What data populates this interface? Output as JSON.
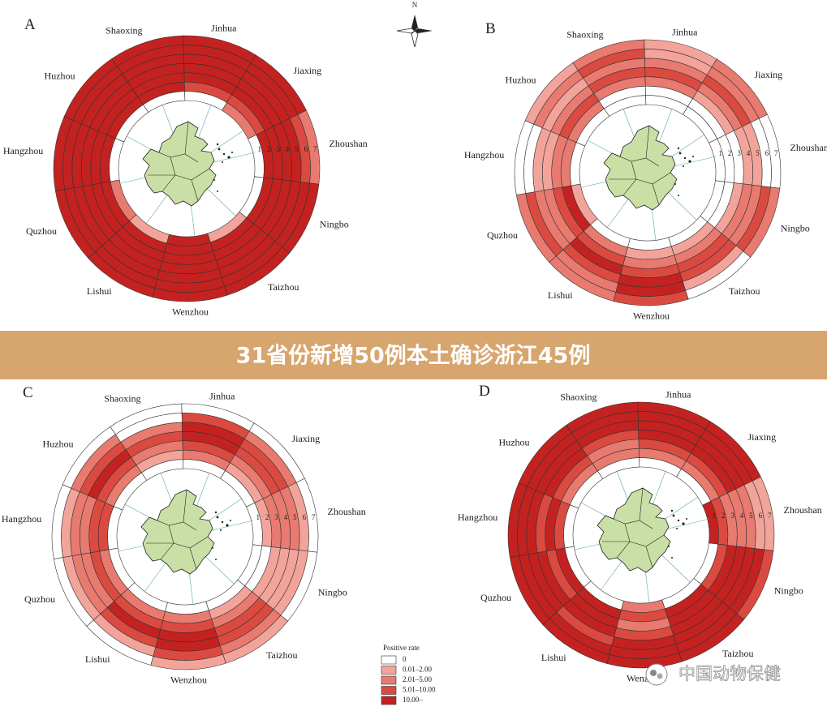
{
  "banner": "31省份新增50例本土确诊浙江45例",
  "compass": "N",
  "watermark": "中国动物保健",
  "ring_numbers": [
    "1",
    "2",
    "3",
    "4",
    "5",
    "6",
    "7"
  ],
  "legend": {
    "title": "Positive rate",
    "classes": [
      {
        "label": "0",
        "color": "#ffffff"
      },
      {
        "label": "0.01–2.00",
        "color": "#f2a49b"
      },
      {
        "label": "2.01–5.00",
        "color": "#e87a70"
      },
      {
        "label": "5.01–10.00",
        "color": "#db4a40"
      },
      {
        "label": "10.00–",
        "color": "#c42220"
      }
    ]
  },
  "panels": [
    {
      "label": "A",
      "sectors": [
        {
          "city": "Zhoushan",
          "levels": [
            0,
            4,
            4,
            4,
            4,
            3,
            2
          ]
        },
        {
          "city": "Ningbo",
          "levels": [
            0,
            4,
            4,
            4,
            4,
            4,
            4
          ]
        },
        {
          "city": "Taizhou",
          "levels": [
            1,
            4,
            4,
            4,
            4,
            4,
            4
          ]
        },
        {
          "city": "Wenzhou",
          "levels": [
            4,
            4,
            4,
            4,
            4,
            4,
            4
          ]
        },
        {
          "city": "Lishui",
          "levels": [
            1,
            4,
            4,
            4,
            4,
            4,
            4
          ]
        },
        {
          "city": "Quzhou",
          "levels": [
            2,
            4,
            4,
            4,
            4,
            4,
            4
          ]
        },
        {
          "city": "Hangzhou",
          "levels": [
            0,
            4,
            4,
            4,
            4,
            4,
            4
          ]
        },
        {
          "city": "Huzhou",
          "levels": [
            0,
            4,
            4,
            4,
            4,
            4,
            4
          ]
        },
        {
          "city": "Shaoxing",
          "levels": [
            0,
            4,
            4,
            4,
            4,
            4,
            4
          ]
        },
        {
          "city": "Jinhua",
          "levels": [
            0,
            3,
            4,
            4,
            4,
            4,
            4
          ]
        },
        {
          "city": "Jiaxing",
          "levels": [
            2,
            3,
            4,
            4,
            4,
            4,
            4
          ]
        }
      ]
    },
    {
      "label": "B",
      "sectors": [
        {
          "city": "Zhoushan",
          "levels": [
            0,
            0,
            0,
            1,
            1,
            0,
            0
          ]
        },
        {
          "city": "Ningbo",
          "levels": [
            0,
            0,
            1,
            2,
            2,
            3,
            2
          ]
        },
        {
          "city": "Taizhou",
          "levels": [
            0,
            1,
            2,
            3,
            3,
            1,
            0
          ]
        },
        {
          "city": "Wenzhou",
          "levels": [
            0,
            1,
            2,
            3,
            4,
            4,
            3
          ]
        },
        {
          "city": "Lishui",
          "levels": [
            0,
            2,
            3,
            4,
            3,
            2,
            2
          ]
        },
        {
          "city": "Quzhou",
          "levels": [
            1,
            4,
            3,
            2,
            2,
            3,
            2
          ]
        },
        {
          "city": "Hangzhou",
          "levels": [
            0,
            2,
            2,
            1,
            1,
            0,
            0
          ]
        },
        {
          "city": "Huzhou",
          "levels": [
            0,
            2,
            3,
            2,
            1,
            2,
            1
          ]
        },
        {
          "city": "Shaoxing",
          "levels": [
            0,
            0,
            2,
            3,
            2,
            3,
            2
          ]
        },
        {
          "city": "Jinhua",
          "levels": [
            0,
            0,
            2,
            3,
            2,
            1,
            1
          ]
        },
        {
          "city": "Jiaxing",
          "levels": [
            0,
            0,
            1,
            2,
            3,
            2,
            2
          ]
        }
      ]
    },
    {
      "label": "C",
      "sectors": [
        {
          "city": "Zhoushan",
          "levels": [
            0,
            1,
            2,
            2,
            2,
            1,
            0
          ]
        },
        {
          "city": "Ningbo",
          "levels": [
            0,
            0,
            1,
            1,
            1,
            1,
            0
          ]
        },
        {
          "city": "Taizhou",
          "levels": [
            0,
            1,
            2,
            3,
            3,
            2,
            1
          ]
        },
        {
          "city": "Wenzhou",
          "levels": [
            0,
            2,
            3,
            4,
            4,
            3,
            1
          ]
        },
        {
          "city": "Lishui",
          "levels": [
            0,
            2,
            3,
            4,
            3,
            1,
            0
          ]
        },
        {
          "city": "Quzhou",
          "levels": [
            0,
            2,
            3,
            2,
            2,
            1,
            0
          ]
        },
        {
          "city": "Hangzhou",
          "levels": [
            0,
            3,
            3,
            2,
            2,
            1,
            0
          ]
        },
        {
          "city": "Huzhou",
          "levels": [
            0,
            2,
            3,
            4,
            3,
            2,
            0
          ]
        },
        {
          "city": "Shaoxing",
          "levels": [
            0,
            1,
            2,
            3,
            2,
            0,
            0
          ]
        },
        {
          "city": "Jinhua",
          "levels": [
            0,
            2,
            3,
            4,
            4,
            3,
            0
          ]
        },
        {
          "city": "Jiaxing",
          "levels": [
            0,
            1,
            2,
            3,
            3,
            2,
            0
          ]
        }
      ]
    },
    {
      "label": "D",
      "sectors": [
        {
          "city": "Zhoushan",
          "levels": [
            4,
            3,
            2,
            2,
            2,
            1,
            1
          ]
        },
        {
          "city": "Ningbo",
          "levels": [
            0,
            3,
            4,
            4,
            4,
            4,
            3
          ]
        },
        {
          "city": "Taizhou",
          "levels": [
            0,
            4,
            4,
            4,
            4,
            4,
            4
          ]
        },
        {
          "city": "Wenzhou",
          "levels": [
            2,
            3,
            2,
            3,
            4,
            4,
            4
          ]
        },
        {
          "city": "Lishui",
          "levels": [
            0,
            4,
            4,
            4,
            3,
            4,
            4
          ]
        },
        {
          "city": "Quzhou",
          "levels": [
            0,
            4,
            3,
            4,
            4,
            4,
            4
          ]
        },
        {
          "city": "Hangzhou",
          "levels": [
            0,
            3,
            4,
            3,
            4,
            4,
            4
          ]
        },
        {
          "city": "Huzhou",
          "levels": [
            0,
            2,
            3,
            4,
            4,
            4,
            4
          ]
        },
        {
          "city": "Shaoxing",
          "levels": [
            0,
            2,
            2,
            3,
            4,
            4,
            4
          ]
        },
        {
          "city": "Jinhua",
          "levels": [
            0,
            2,
            3,
            4,
            4,
            4,
            4
          ]
        },
        {
          "city": "Jiaxing",
          "levels": [
            0,
            2,
            3,
            4,
            4,
            4,
            4
          ]
        }
      ]
    }
  ]
}
